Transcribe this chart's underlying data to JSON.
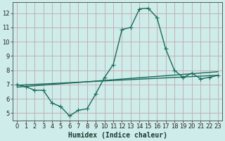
{
  "xlabel": "Humidex (Indice chaleur)",
  "ylabel": "",
  "bg_color": "#ceecea",
  "grid_color": "#c0aaaa",
  "line_color": "#1a6b5a",
  "xlim": [
    -0.5,
    23.5
  ],
  "ylim": [
    4.5,
    12.75
  ],
  "x_ticks": [
    0,
    1,
    2,
    3,
    4,
    5,
    6,
    7,
    8,
    9,
    10,
    11,
    12,
    13,
    14,
    15,
    16,
    17,
    18,
    19,
    20,
    21,
    22,
    23
  ],
  "y_ticks": [
    5,
    6,
    7,
    8,
    9,
    10,
    11,
    12
  ],
  "curve_x": [
    0,
    1,
    2,
    3,
    4,
    5,
    6,
    7,
    8,
    9,
    10,
    11,
    12,
    13,
    14,
    15,
    16,
    17,
    18,
    19,
    20,
    21,
    22,
    23
  ],
  "curve_y": [
    7.0,
    6.85,
    6.6,
    6.6,
    5.7,
    5.45,
    4.8,
    5.2,
    5.3,
    6.35,
    7.5,
    8.4,
    10.85,
    11.0,
    12.3,
    12.35,
    11.7,
    9.5,
    8.0,
    7.5,
    7.8,
    7.4,
    7.5,
    7.65
  ],
  "line1_x": [
    0,
    23
  ],
  "line1_y": [
    6.95,
    7.65
  ],
  "line2_x": [
    0,
    23
  ],
  "line2_y": [
    6.82,
    7.9
  ],
  "marker_size": 2.2,
  "line_width": 1.0,
  "tick_fontsize": 6.0,
  "xlabel_fontsize": 7.0
}
